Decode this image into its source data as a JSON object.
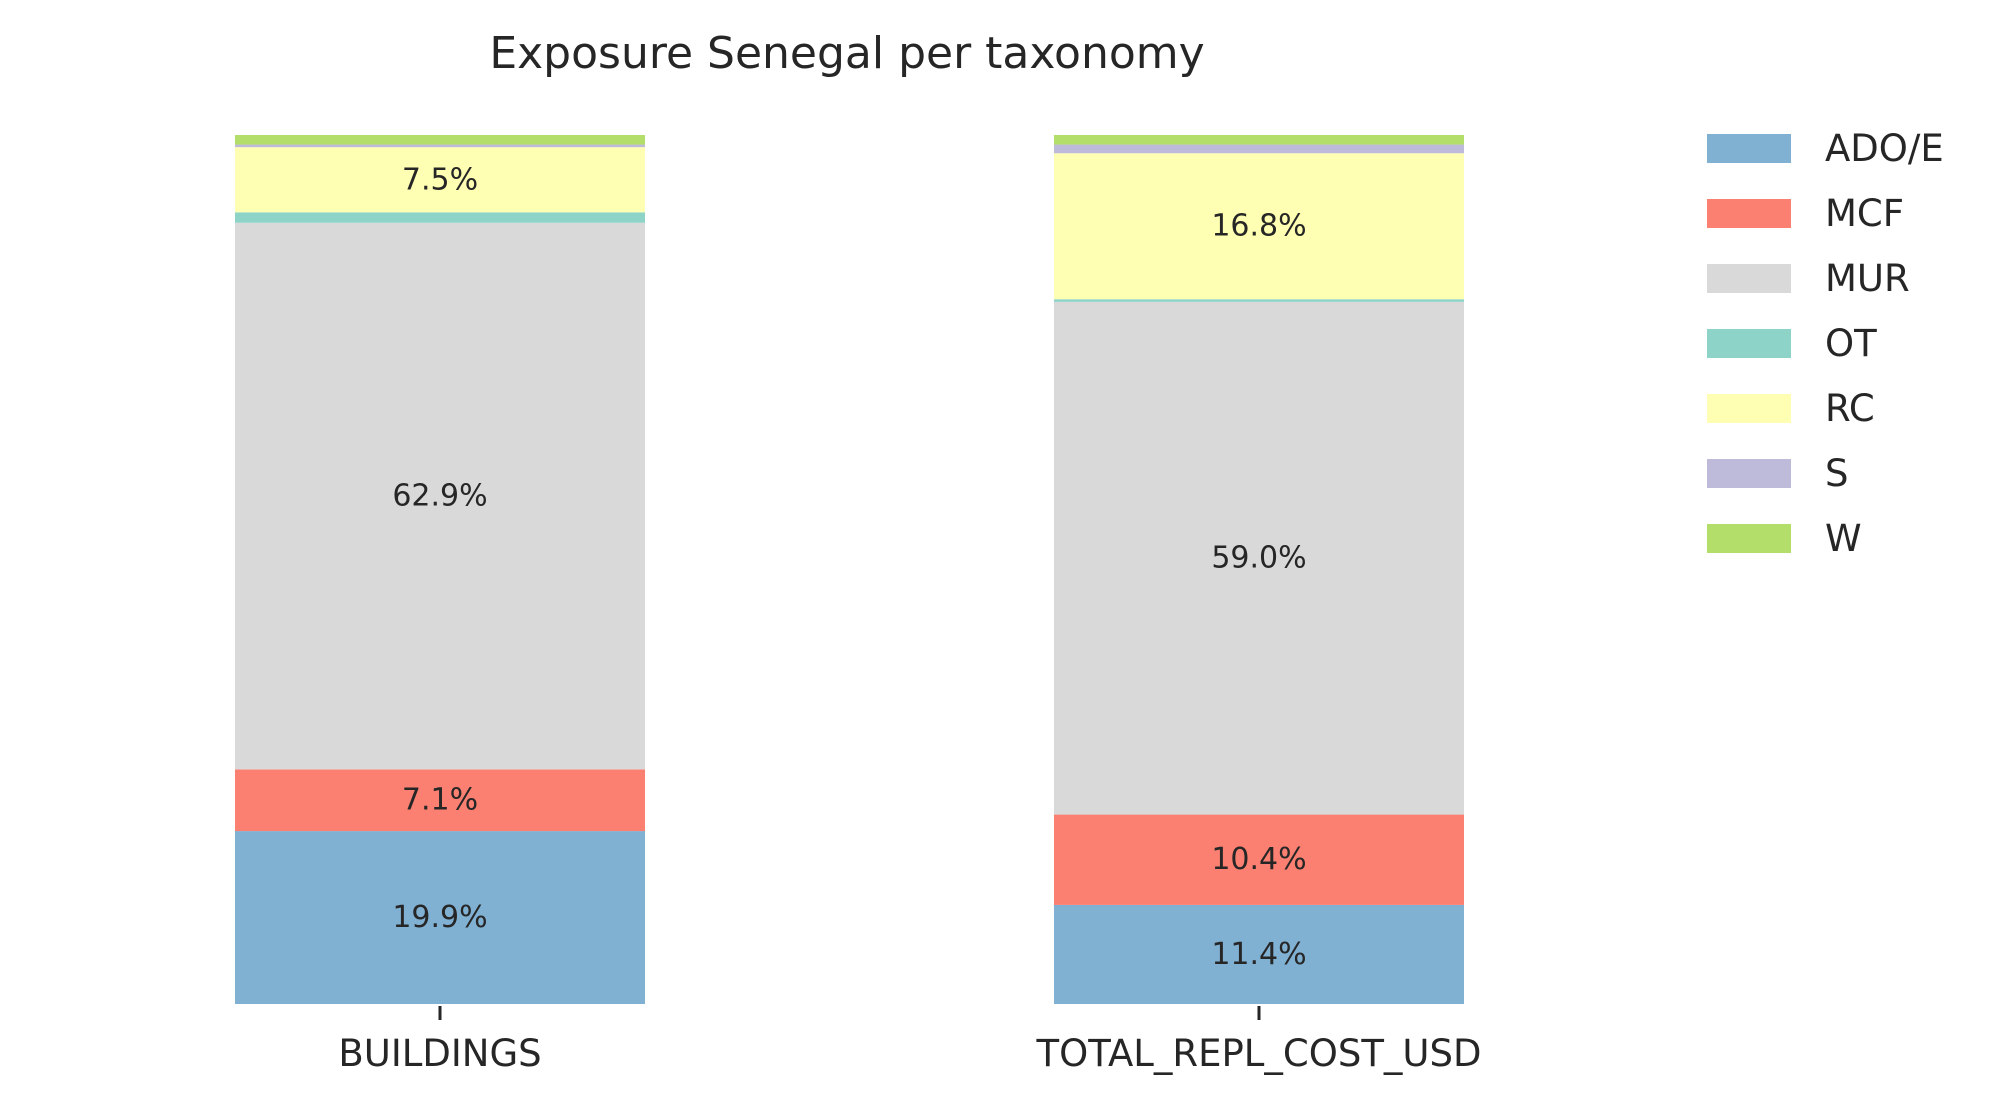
{
  "chart_data": {
    "type": "bar",
    "stacked": true,
    "normalized": true,
    "title": "Exposure Senegal per taxonomy",
    "xlabel": "",
    "ylabel": "",
    "ylim": [
      0,
      100
    ],
    "grid": false,
    "legend_position": "right",
    "categories": [
      "BUILDINGS",
      "TOTAL_REPL_COST_USD"
    ],
    "series": [
      {
        "name": "ADO/E",
        "color": "#80b1d3",
        "values": [
          19.9,
          11.4
        ]
      },
      {
        "name": "MCF",
        "color": "#fb8072",
        "values": [
          7.1,
          10.4
        ]
      },
      {
        "name": "MUR",
        "color": "#d9d9d9",
        "values": [
          62.9,
          59.0
        ]
      },
      {
        "name": "OT",
        "color": "#8dd3c7",
        "values": [
          1.2,
          0.3
        ]
      },
      {
        "name": "RC",
        "color": "#ffffb3",
        "values": [
          7.5,
          16.8
        ]
      },
      {
        "name": "S",
        "color": "#bebada",
        "values": [
          0.3,
          1.0
        ]
      },
      {
        "name": "W",
        "color": "#b3de69",
        "values": [
          1.1,
          1.1
        ]
      }
    ],
    "data_labels": [
      [
        "19.9%",
        "11.4%"
      ],
      [
        "7.1%",
        "10.4%"
      ],
      [
        "62.9%",
        "59.0%"
      ],
      [
        "",
        ""
      ],
      [
        "7.5%",
        "16.8%"
      ],
      [
        "",
        ""
      ],
      [
        "",
        ""
      ]
    ]
  }
}
